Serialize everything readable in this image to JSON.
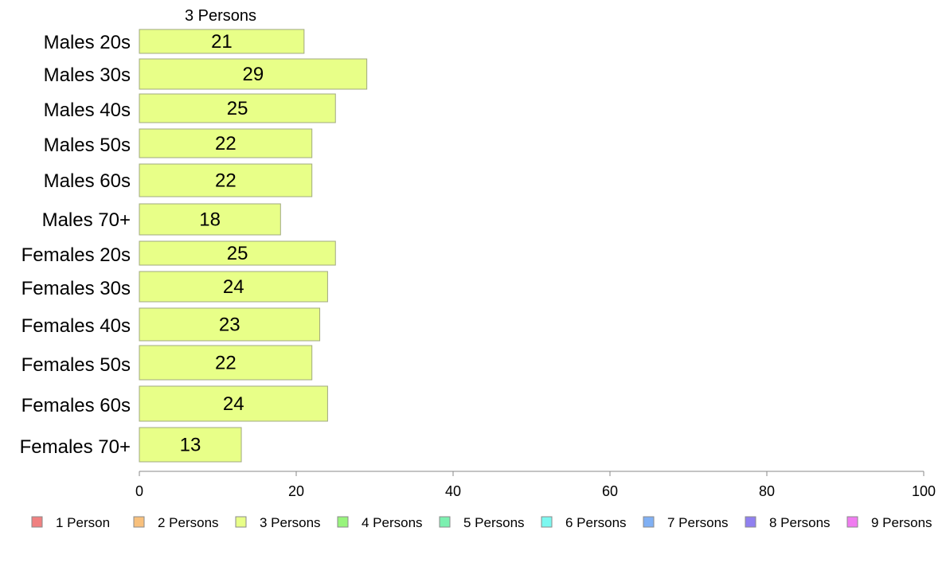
{
  "chart_data": {
    "type": "bar",
    "orientation": "horizontal",
    "series_title": "3 Persons",
    "categories": [
      "Males 20s",
      "Males 30s",
      "Males 40s",
      "Males 50s",
      "Males 60s",
      "Males 70+",
      "Females 20s",
      "Females 30s",
      "Females 40s",
      "Females 50s",
      "Females 60s",
      "Females 70+"
    ],
    "series": [
      {
        "name": "3 Persons",
        "values": [
          21,
          29,
          25,
          22,
          22,
          18,
          25,
          24,
          23,
          22,
          24,
          13
        ]
      }
    ],
    "xlim": [
      0,
      100
    ],
    "xticks": [
      0,
      20,
      40,
      60,
      80,
      100
    ],
    "grid": false,
    "legend": {
      "placement": "bottom",
      "items": [
        {
          "label": "1 Person",
          "color": "#f08080"
        },
        {
          "label": "2 Persons",
          "color": "#f8c07c"
        },
        {
          "label": "3 Persons",
          "color": "#e8ff88"
        },
        {
          "label": "4 Persons",
          "color": "#98f47c"
        },
        {
          "label": "5 Persons",
          "color": "#7cf0b0"
        },
        {
          "label": "6 Persons",
          "color": "#7cf8f0"
        },
        {
          "label": "7 Persons",
          "color": "#80b0f4"
        },
        {
          "label": "8 Persons",
          "color": "#9080f0"
        },
        {
          "label": "9 Persons",
          "color": "#f07cf0"
        }
      ]
    },
    "bar_color": "#e8ff88",
    "bar_stroke": "#a0a880"
  }
}
